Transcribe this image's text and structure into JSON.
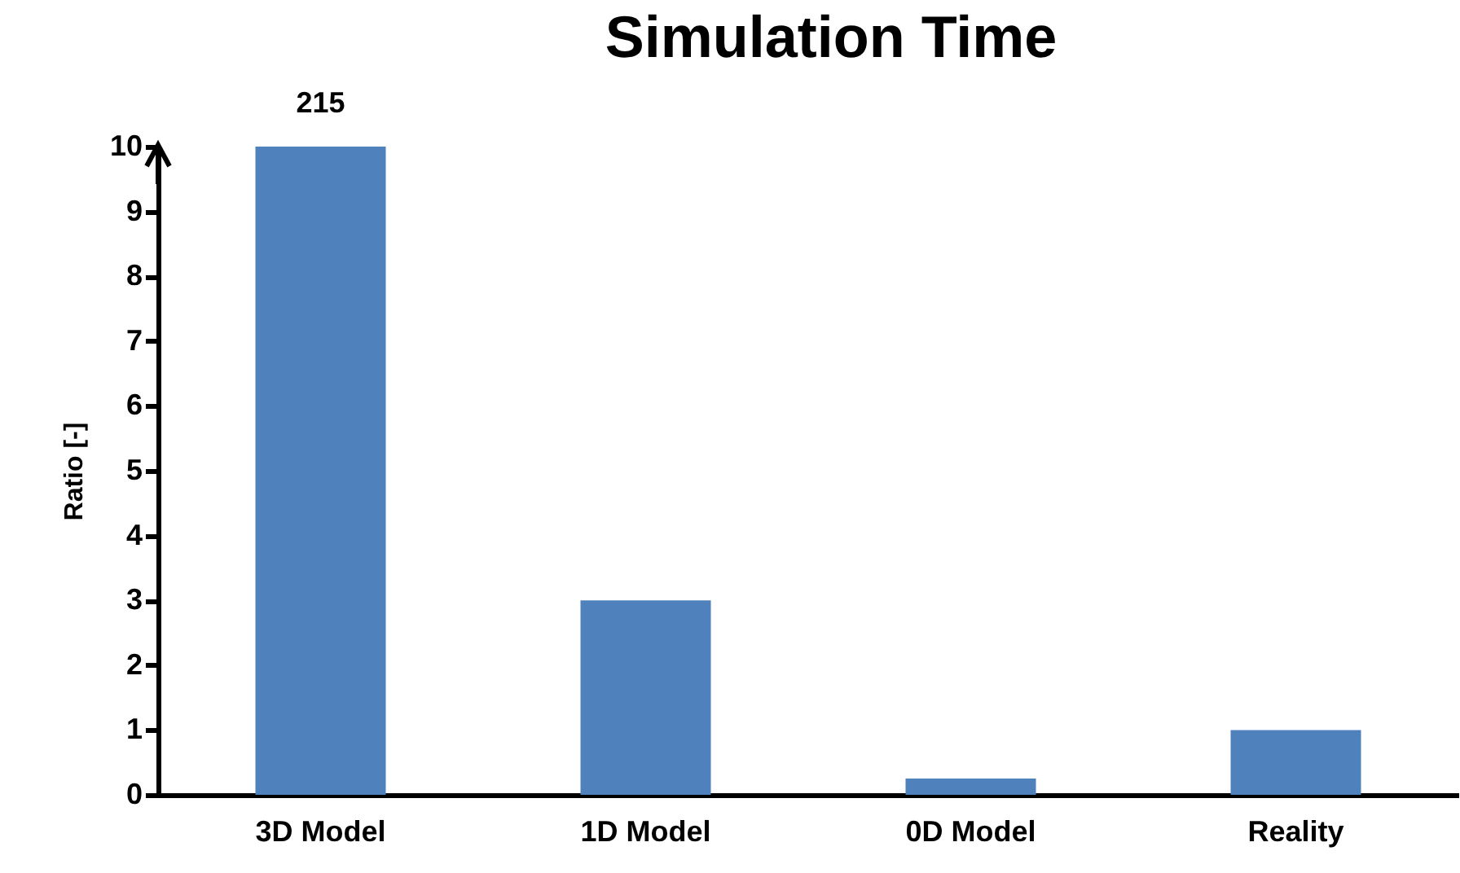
{
  "chart_data": {
    "type": "bar",
    "title": "Simulation Time",
    "ylabel": "Ratio [-]",
    "categories": [
      "3D Model",
      "1D Model",
      "0D Model",
      "Reality"
    ],
    "values": [
      10,
      3,
      0.25,
      1
    ],
    "color": "#4f81bd",
    "ylim": [
      0,
      10
    ],
    "yticks": [
      0,
      1,
      2,
      3,
      4,
      5,
      6,
      7,
      8,
      9,
      10
    ],
    "grid": false,
    "annotations": [
      {
        "text": "215",
        "x": "3D Model",
        "y": 10
      }
    ]
  }
}
